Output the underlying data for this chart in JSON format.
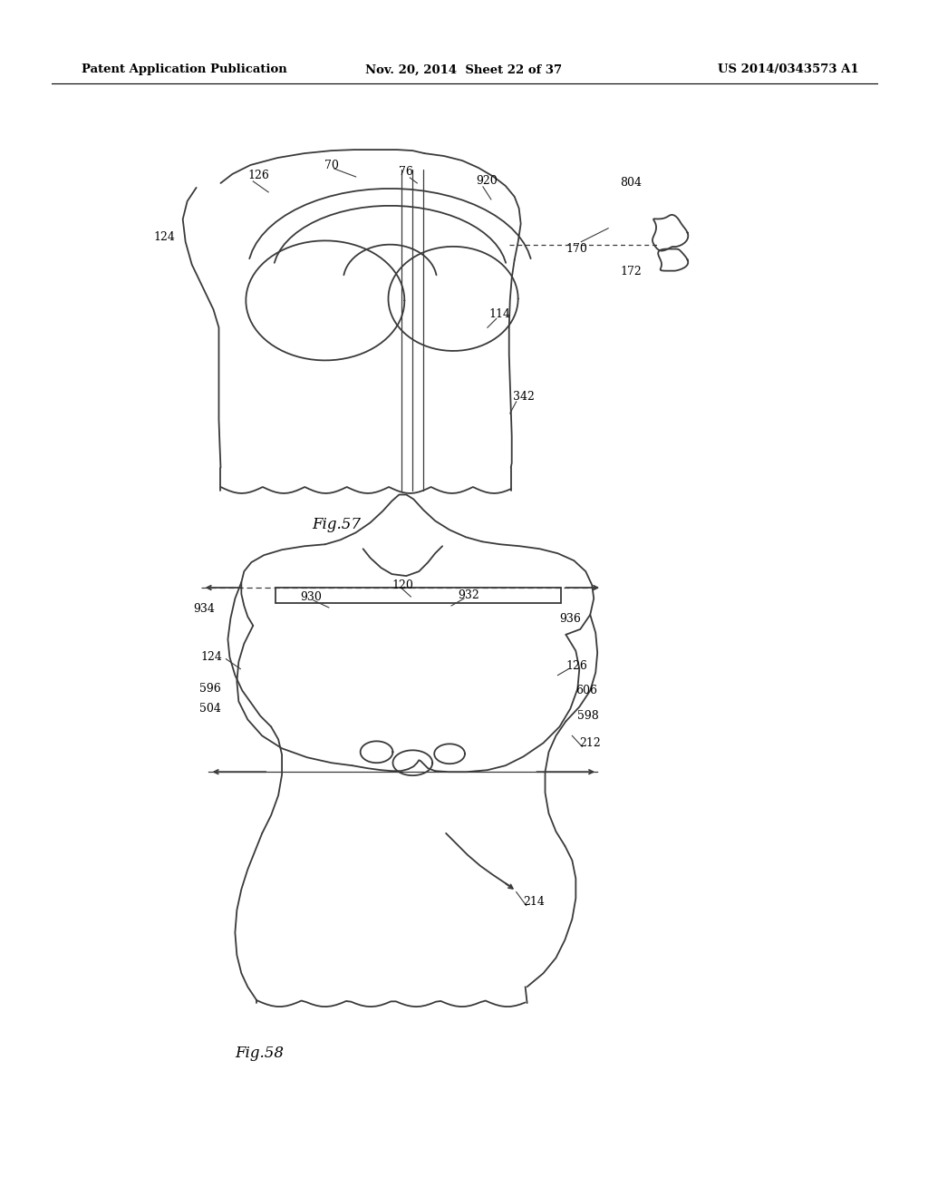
{
  "bg_color": "#ffffff",
  "line_color": "#3a3a3a",
  "header_left": "Patent Application Publication",
  "header_mid": "Nov. 20, 2014  Sheet 22 of 37",
  "header_right": "US 2014/0343573 A1",
  "fig57_label": "Fig.57",
  "fig58_label": "Fig.58"
}
